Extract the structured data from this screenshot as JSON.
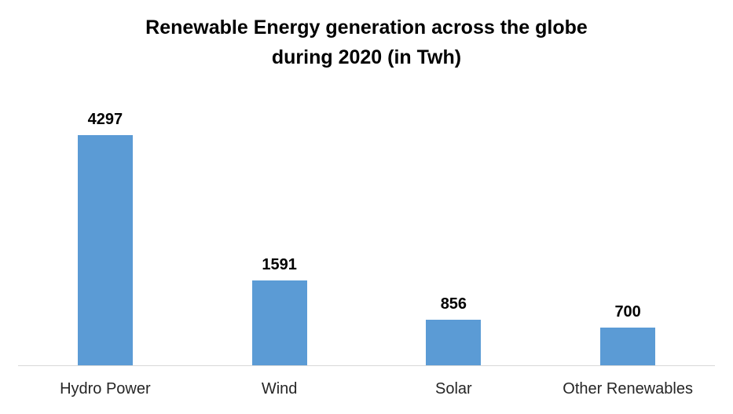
{
  "chart_data": {
    "type": "bar",
    "title": "Renewable Energy generation across the globe during 2020 (in Twh)",
    "title_lines": [
      "Renewable Energy generation across the globe",
      "during 2020 (in Twh)"
    ],
    "categories": [
      "Hydro Power",
      "Wind",
      "Solar",
      "Other Renewables"
    ],
    "values": [
      4297,
      1591,
      856,
      700
    ],
    "xlabel": "",
    "ylabel": "",
    "ylim": [
      0,
      4500
    ],
    "grid": false,
    "legend": "none",
    "data_labels": true,
    "bar_color": "#5b9bd5",
    "axis_line_color": "#d9d9d9",
    "label_color": "#000000",
    "category_color": "#262626"
  }
}
